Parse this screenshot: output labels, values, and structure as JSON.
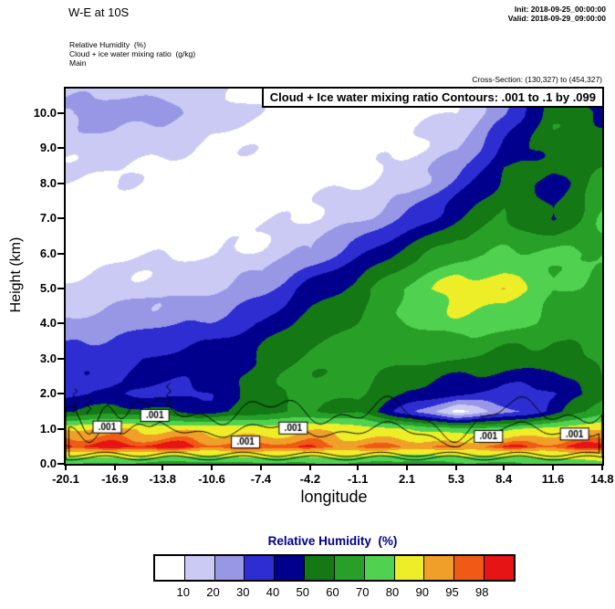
{
  "header": {
    "title": "W-E at 10S",
    "init": "Init: 2018-09-25_00:00:00",
    "valid": "Valid: 2018-09-29_09:00:00"
  },
  "subheader": {
    "line1": "Relative Humidity  (%)",
    "line2": "Cloud + ice water mixing ratio  (g/kg)",
    "line3": "Main",
    "cross_section": "Cross-Section: (130,327) to (454,327)"
  },
  "plot": {
    "overlay_label": "Cloud + Ice water mixing ratio Contours: .001 to .1 by .099",
    "xlabel": "longitude",
    "ylabel": "Height (km)"
  },
  "chart_data": {
    "type": "heatmap",
    "title": "Relative Humidity (%) cross-section W-E at 10S with cloud + ice water mixing ratio contours",
    "xlabel": "longitude",
    "ylabel": "Height (km)",
    "xlim": [
      -20.1,
      14.8
    ],
    "ylim": [
      0,
      10.7
    ],
    "x_ticks": [
      -20.1,
      -16.9,
      -13.8,
      -10.6,
      -7.4,
      -4.2,
      -1.1,
      2.1,
      5.3,
      8.4,
      11.6,
      14.8
    ],
    "x_tick_labels": [
      "-20.1",
      "-16.9",
      "-13.8",
      "-10.6",
      "-7.4",
      "-4.2",
      "-1.1",
      "2.1",
      "5.3",
      "8.4",
      "11.6",
      "14.8"
    ],
    "y_ticks": [
      0,
      1,
      2,
      3,
      4,
      5,
      6,
      7,
      8,
      9,
      10
    ],
    "y_tick_labels": [
      "0.0",
      "1.0",
      "2.0",
      "3.0",
      "4.0",
      "5.0",
      "6.0",
      "7.0",
      "8.0",
      "9.0",
      "10.0"
    ],
    "colorbar": {
      "title": "Relative Humidity  (%)",
      "thresholds": [
        10,
        20,
        30,
        40,
        50,
        60,
        70,
        80,
        90,
        95,
        98
      ],
      "tick_labels": [
        "10",
        "20",
        "30",
        "40",
        "50",
        "60",
        "70",
        "80",
        "90",
        "95",
        "98"
      ],
      "colors": [
        "#ffffff",
        "#cacaf5",
        "#9797e6",
        "#2d2dd2",
        "#00008c",
        "#147814",
        "#28a028",
        "#50d250",
        "#eeee28",
        "#f0a028",
        "#f05a14",
        "#e61414"
      ]
    },
    "grid": {
      "x": [
        -20.1,
        -16.9,
        -13.8,
        -10.6,
        -7.4,
        -4.2,
        -1.1,
        2.1,
        5.3,
        8.4,
        11.6,
        14.8
      ],
      "y": [
        0,
        0.5,
        1,
        1.5,
        2,
        3,
        4,
        5,
        6,
        7,
        8,
        9,
        10,
        10.7
      ],
      "rh": [
        [
          70,
          99,
          90,
          50,
          38,
          36,
          22,
          12,
          7,
          5,
          8,
          14,
          22,
          16
        ],
        [
          68,
          99,
          92,
          55,
          42,
          38,
          26,
          14,
          8,
          5,
          8,
          16,
          26,
          18
        ],
        [
          66,
          99,
          90,
          50,
          38,
          44,
          28,
          16,
          8,
          5,
          7,
          12,
          24,
          16
        ],
        [
          64,
          98,
          88,
          45,
          40,
          46,
          32,
          18,
          9,
          6,
          5,
          8,
          14,
          10
        ],
        [
          66,
          98,
          86,
          55,
          58,
          52,
          42,
          26,
          13,
          7,
          5,
          7,
          10,
          8
        ],
        [
          68,
          98,
          88,
          62,
          63,
          62,
          55,
          44,
          22,
          11,
          7,
          5,
          7,
          6
        ],
        [
          66,
          97,
          85,
          58,
          62,
          66,
          62,
          55,
          38,
          18,
          9,
          5,
          5,
          5
        ],
        [
          64,
          96,
          80,
          35,
          48,
          62,
          70,
          72,
          55,
          32,
          16,
          9,
          7,
          6
        ],
        [
          66,
          96,
          72,
          8,
          42,
          60,
          76,
          86,
          66,
          50,
          33,
          18,
          10,
          8
        ],
        [
          68,
          97,
          78,
          24,
          36,
          56,
          73,
          88,
          70,
          62,
          54,
          44,
          28,
          22
        ],
        [
          72,
          98,
          85,
          45,
          38,
          55,
          66,
          70,
          72,
          48,
          46,
          56,
          60,
          52
        ],
        [
          75,
          99,
          90,
          68,
          58,
          62,
          66,
          68,
          70,
          72,
          64,
          58,
          48,
          38
        ]
      ]
    },
    "cloud_contours": {
      "levels": [
        0.001,
        0.1
      ],
      "label": ".001",
      "labels": [
        {
          "lon": -17.4,
          "km": 1.05
        },
        {
          "lon": -14.3,
          "km": 1.38
        },
        {
          "lon": -8.4,
          "km": 0.62
        },
        {
          "lon": -5.3,
          "km": 1.02
        },
        {
          "lon": 7.4,
          "km": 0.78
        },
        {
          "lon": 13.0,
          "km": 0.85
        }
      ]
    }
  }
}
